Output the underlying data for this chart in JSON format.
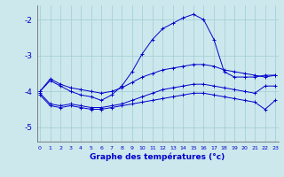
{
  "xlabel": "Graphe des températures (°c)",
  "background_color": "#cce8ec",
  "grid_color": "#9fccd4",
  "line_color": "#0000cc",
  "x_ticks": [
    0,
    1,
    2,
    3,
    4,
    5,
    6,
    7,
    8,
    9,
    10,
    11,
    12,
    13,
    14,
    15,
    16,
    17,
    18,
    19,
    20,
    21,
    22,
    23
  ],
  "y_ticks": [
    -5,
    -4,
    -3,
    -2
  ],
  "ylim": [
    -5.4,
    -1.6
  ],
  "xlim": [
    -0.3,
    23.3
  ],
  "series_curvy_x": [
    0,
    1,
    2,
    3,
    4,
    5,
    6,
    7,
    8,
    9,
    10,
    11,
    12,
    13,
    14,
    15,
    16,
    17,
    18,
    19,
    20,
    21,
    22,
    23
  ],
  "series_curvy_y": [
    -4.0,
    -3.7,
    -3.85,
    -4.0,
    -4.1,
    -4.15,
    -4.25,
    -4.1,
    -3.85,
    -3.45,
    -2.95,
    -2.55,
    -2.25,
    -2.1,
    -1.95,
    -1.85,
    -2.0,
    -2.55,
    -3.45,
    -3.6,
    -3.6,
    -3.6,
    -3.55,
    -3.55
  ],
  "series_upper_x": [
    0,
    1,
    2,
    3,
    4,
    5,
    6,
    7,
    8,
    9,
    10,
    11,
    12,
    13,
    14,
    15,
    16,
    17,
    18,
    19,
    20,
    21,
    22,
    23
  ],
  "series_upper_y": [
    -4.0,
    -3.65,
    -3.8,
    -3.9,
    -3.95,
    -4.0,
    -4.05,
    -4.0,
    -3.9,
    -3.75,
    -3.6,
    -3.5,
    -3.4,
    -3.35,
    -3.3,
    -3.25,
    -3.25,
    -3.3,
    -3.4,
    -3.45,
    -3.5,
    -3.55,
    -3.6,
    -3.55
  ],
  "series_lower_x": [
    0,
    1,
    2,
    3,
    4,
    5,
    6,
    7,
    8,
    9,
    10,
    11,
    12,
    13,
    14,
    15,
    16,
    17,
    18,
    19,
    20,
    21,
    22,
    23
  ],
  "series_lower_y": [
    -4.05,
    -4.35,
    -4.4,
    -4.35,
    -4.4,
    -4.45,
    -4.45,
    -4.4,
    -4.35,
    -4.25,
    -4.15,
    -4.05,
    -3.95,
    -3.9,
    -3.85,
    -3.8,
    -3.8,
    -3.85,
    -3.9,
    -3.95,
    -4.0,
    -4.05,
    -3.85,
    -3.85
  ],
  "series_bottom_x": [
    0,
    1,
    2,
    3,
    4,
    5,
    6,
    7,
    8,
    9,
    10,
    11,
    12,
    13,
    14,
    15,
    16,
    17,
    18,
    19,
    20,
    21,
    22,
    23
  ],
  "series_bottom_y": [
    -4.1,
    -4.4,
    -4.45,
    -4.4,
    -4.45,
    -4.5,
    -4.5,
    -4.45,
    -4.4,
    -4.35,
    -4.3,
    -4.25,
    -4.2,
    -4.15,
    -4.1,
    -4.05,
    -4.05,
    -4.1,
    -4.15,
    -4.2,
    -4.25,
    -4.3,
    -4.5,
    -4.25
  ]
}
